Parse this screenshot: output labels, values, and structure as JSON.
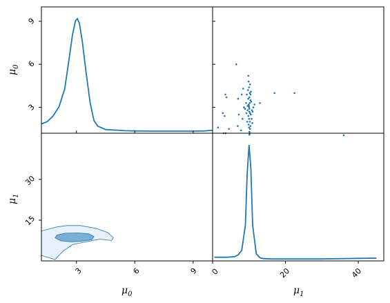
{
  "colors": {
    "main": "#1f77b4",
    "fill_inner": "#7aafd6",
    "fill_outer": "#e8f1f9",
    "frame": "#000000"
  },
  "labels": {
    "x0": {
      "base": "μ",
      "sub": "0"
    },
    "x1": {
      "base": "μ",
      "sub": "1"
    },
    "y0": {
      "base": "μ",
      "sub": "0"
    },
    "y1": {
      "base": "μ",
      "sub": "1"
    }
  },
  "chart_data": {
    "type": "corner",
    "variables": [
      "μ0",
      "μ1"
    ],
    "ranges": {
      "mu0": [
        1.2,
        10.0
      ],
      "mu1": [
        0,
        47
      ]
    },
    "ticks": {
      "mu0_bottom": [
        "3",
        "6",
        "9"
      ],
      "mu1_bottom": [
        "0",
        "20",
        "40"
      ],
      "mu0_left": [
        "3",
        "6",
        "9"
      ],
      "mu1_left": [
        "15",
        "30"
      ]
    },
    "diag_mu0": {
      "type": "line",
      "x": [
        1.2,
        1.5,
        1.8,
        2.1,
        2.4,
        2.6,
        2.8,
        2.95,
        3.05,
        3.15,
        3.3,
        3.5,
        3.7,
        3.9,
        4.1,
        4.5,
        5.0,
        5.5,
        6.0,
        7.0,
        8.0,
        9.0,
        9.6,
        9.85,
        10.0
      ],
      "y": [
        0.07,
        0.09,
        0.14,
        0.22,
        0.38,
        0.62,
        0.86,
        0.98,
        1.0,
        0.96,
        0.8,
        0.52,
        0.26,
        0.1,
        0.05,
        0.02,
        0.015,
        0.01,
        0.008,
        0.006,
        0.006,
        0.006,
        0.008,
        0.012,
        0.012
      ]
    },
    "diag_mu1": {
      "type": "line",
      "x": [
        0.5,
        2,
        4,
        6,
        7,
        8,
        9,
        9.5,
        10,
        10.5,
        11,
        12,
        13,
        14,
        16,
        20,
        30,
        40,
        45
      ],
      "y": [
        0.02,
        0.02,
        0.02,
        0.025,
        0.04,
        0.08,
        0.3,
        0.75,
        1.0,
        0.8,
        0.3,
        0.05,
        0.015,
        0.008,
        0.005,
        0.005,
        0.005,
        0.01,
        0.012
      ]
    },
    "scatter_mu1_vs_mu0": {
      "type": "scatter",
      "points": [
        [
          10.1,
          2.9
        ],
        [
          9.6,
          3.1
        ],
        [
          10.5,
          2.5
        ],
        [
          9.8,
          3.6
        ],
        [
          10.2,
          3.3
        ],
        [
          10.8,
          2.8
        ],
        [
          9.3,
          2.6
        ],
        [
          10.4,
          3.9
        ],
        [
          10.0,
          2.2
        ],
        [
          9.9,
          1.8
        ],
        [
          10.3,
          1.5
        ],
        [
          10.1,
          1.3
        ],
        [
          9.7,
          4.2
        ],
        [
          10.6,
          3.4
        ],
        [
          11.2,
          3.0
        ],
        [
          8.9,
          2.9
        ],
        [
          10.0,
          4.4
        ],
        [
          10.2,
          4.0
        ],
        [
          9.5,
          2.0
        ],
        [
          10.7,
          2.2
        ],
        [
          11.0,
          2.7
        ],
        [
          9.2,
          3.3
        ],
        [
          10.4,
          1.7
        ],
        [
          10.0,
          3.1
        ],
        [
          10.3,
          2.6
        ],
        [
          9.8,
          2.4
        ],
        [
          10.1,
          3.7
        ],
        [
          11.5,
          3.2
        ],
        [
          8.6,
          3.0
        ],
        [
          10.9,
          1.9
        ],
        [
          9.4,
          3.9
        ],
        [
          10.5,
          4.1
        ],
        [
          13.0,
          3.3
        ],
        [
          7.0,
          3.6
        ],
        [
          7.2,
          2.5
        ],
        [
          6.9,
          1.7
        ],
        [
          8.0,
          3.9
        ],
        [
          8.2,
          2.2
        ],
        [
          7.8,
          1.4
        ],
        [
          8.4,
          4.3
        ],
        [
          6.5,
          6.0
        ],
        [
          3.5,
          3.9
        ],
        [
          3.8,
          3.7
        ],
        [
          2.8,
          2.6
        ],
        [
          3.3,
          2.4
        ],
        [
          3.0,
          1.2
        ],
        [
          3.6,
          1.2
        ],
        [
          4.5,
          1.5
        ],
        [
          1.5,
          1.6
        ],
        [
          17.0,
          4.0
        ],
        [
          22.5,
          4.0
        ],
        [
          36.0,
          1.05
        ],
        [
          9.8,
          5.2
        ],
        [
          10.1,
          1.1
        ],
        [
          10.2,
          1.2
        ],
        [
          9.9,
          4.8
        ],
        [
          10.0,
          3.0
        ],
        [
          10.1,
          2.7
        ],
        [
          9.9,
          3.2
        ],
        [
          10.2,
          2.0
        ],
        [
          9.6,
          2.8
        ],
        [
          10.4,
          3.5
        ],
        [
          10.0,
          1.6
        ],
        [
          10.3,
          4.6
        ]
      ]
    },
    "kde_mu0_vs_mu1": {
      "type": "contour",
      "levels": [
        {
          "name": "outer",
          "x": [
            1.2,
            2.0,
            2.5,
            3.2,
            4.0,
            4.6,
            4.9,
            4.8,
            4.2,
            3.5,
            2.8,
            2.3,
            1.9,
            1.2
          ],
          "y": [
            11,
            12.5,
            13.0,
            13.0,
            12.0,
            10.5,
            8.5,
            7.5,
            8.0,
            7.0,
            6.0,
            3.5,
            0.5,
            2.0
          ]
        },
        {
          "name": "inner",
          "x": [
            2.0,
            2.4,
            3.1,
            3.6,
            3.9,
            3.8,
            3.2,
            2.7,
            2.2,
            1.9
          ],
          "y": [
            9.5,
            10.2,
            10.3,
            10.0,
            9.0,
            7.8,
            7.2,
            7.0,
            7.4,
            8.5
          ]
        }
      ]
    }
  }
}
